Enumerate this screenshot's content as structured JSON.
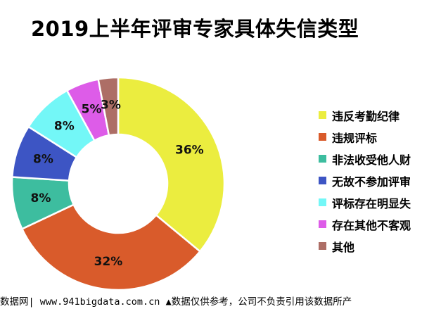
{
  "title": "2019上半年评审专家具体失信类型",
  "footer": "数据网| www.941bigdata.com.cn  ▲数据仅供参考，公司不负责引用该数据所产",
  "chart_data": {
    "type": "pie",
    "title": "2019上半年评审专家具体失信类型",
    "donut": true,
    "unit": "%",
    "legend_position": "right",
    "categories": [
      "违反考勤纪律",
      "违规评标",
      "非法收受他人财",
      "无故不参加评审",
      "评标存在明显失",
      "存在其他不客观",
      "其他"
    ],
    "values": [
      36,
      32,
      8,
      8,
      8,
      5,
      3
    ],
    "labels": [
      "36%",
      "32%",
      "8%",
      "8%",
      "8%",
      "5%",
      "3%"
    ],
    "colors": [
      "#ebed3f",
      "#d95b2b",
      "#3dbd9f",
      "#3d55c4",
      "#73f7f7",
      "#dd5ce8",
      "#ad6e66"
    ]
  }
}
